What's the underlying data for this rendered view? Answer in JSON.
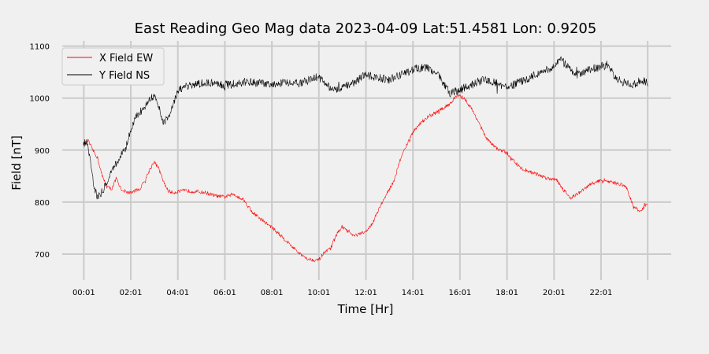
{
  "chart_data": {
    "type": "line",
    "title": "East Reading Geo Mag data        2023-04-09      Lat:51.4581  Lon: 0.9205",
    "xlabel": "Time  [Hr]",
    "ylabel": "Field  [nT]",
    "x_unit": "hours",
    "xlim": [
      -0.9,
      25.0
    ],
    "ylim": [
      650,
      1110
    ],
    "x_ticks": [
      {
        "value": 0.0167,
        "label": "00:01"
      },
      {
        "value": 2.0167,
        "label": "02:01"
      },
      {
        "value": 4.0167,
        "label": "04:01"
      },
      {
        "value": 6.0167,
        "label": "06:01"
      },
      {
        "value": 8.0167,
        "label": "08:01"
      },
      {
        "value": 10.0167,
        "label": "10:01"
      },
      {
        "value": 12.0167,
        "label": "12:01"
      },
      {
        "value": 14.0167,
        "label": "14:01"
      },
      {
        "value": 16.0167,
        "label": "16:01"
      },
      {
        "value": 18.0167,
        "label": "18:01"
      },
      {
        "value": 20.0167,
        "label": "20:01"
      },
      {
        "value": 22.0167,
        "label": "22:01"
      }
    ],
    "x_grid_extra": [
      24.0
    ],
    "y_ticks": [
      700,
      800,
      900,
      1000,
      1100
    ],
    "grid": true,
    "legend_position": "top-left",
    "series": [
      {
        "name": "X Field EW",
        "color": "#ff0000",
        "x": [
          0.0,
          0.2,
          0.4,
          0.6,
          0.8,
          1.0,
          1.2,
          1.4,
          1.6,
          1.8,
          2.0,
          2.2,
          2.4,
          2.6,
          2.8,
          3.0,
          3.2,
          3.4,
          3.6,
          3.8,
          4.0,
          4.4,
          4.8,
          5.2,
          5.6,
          6.0,
          6.4,
          6.8,
          7.2,
          7.6,
          8.0,
          8.4,
          8.8,
          9.2,
          9.6,
          10.0,
          10.2,
          10.5,
          10.8,
          11.0,
          11.5,
          12.0,
          12.3,
          12.6,
          12.9,
          13.2,
          13.5,
          13.8,
          14.1,
          14.4,
          14.7,
          15.0,
          15.3,
          15.6,
          15.9,
          16.2,
          16.5,
          16.8,
          17.1,
          17.4,
          17.7,
          18.0,
          18.3,
          18.6,
          18.9,
          19.2,
          19.5,
          19.8,
          20.1,
          20.4,
          20.7,
          21.0,
          21.3,
          21.6,
          21.9,
          22.2,
          22.5,
          22.8,
          23.1,
          23.4,
          23.7,
          24.0
        ],
        "values": [
          912,
          918,
          900,
          885,
          850,
          830,
          825,
          845,
          825,
          820,
          818,
          822,
          825,
          840,
          860,
          878,
          865,
          840,
          822,
          818,
          820,
          822,
          820,
          818,
          812,
          810,
          815,
          805,
          780,
          765,
          752,
          735,
          718,
          700,
          690,
          688,
          700,
          710,
          740,
          752,
          735,
          742,
          760,
          790,
          815,
          840,
          885,
          915,
          940,
          955,
          965,
          972,
          980,
          990,
          1005,
          1000,
          980,
          955,
          925,
          910,
          900,
          895,
          880,
          865,
          860,
          855,
          850,
          845,
          845,
          825,
          808,
          815,
          825,
          835,
          840,
          842,
          838,
          835,
          828,
          790,
          782,
          798
        ]
      },
      {
        "name": "Y Field NS",
        "color": "#000000",
        "x": [
          0.0,
          0.15,
          0.3,
          0.45,
          0.6,
          0.8,
          1.0,
          1.2,
          1.4,
          1.6,
          1.8,
          2.0,
          2.2,
          2.4,
          2.6,
          2.8,
          3.0,
          3.2,
          3.4,
          3.6,
          3.8,
          4.0,
          4.3,
          4.6,
          5.0,
          5.5,
          6.0,
          6.5,
          7.0,
          7.5,
          8.0,
          8.5,
          9.0,
          9.5,
          10.0,
          10.3,
          10.6,
          11.0,
          11.5,
          12.0,
          12.5,
          13.0,
          13.5,
          14.0,
          14.5,
          15.0,
          15.3,
          15.6,
          16.0,
          16.5,
          17.0,
          17.5,
          18.0,
          18.5,
          19.0,
          19.5,
          20.0,
          20.3,
          20.6,
          21.0,
          21.5,
          22.0,
          22.3,
          22.6,
          23.0,
          23.4,
          23.7,
          24.0
        ],
        "values": [
          910,
          920,
          880,
          830,
          810,
          820,
          840,
          860,
          875,
          890,
          905,
          935,
          960,
          972,
          985,
          1000,
          1005,
          985,
          955,
          962,
          985,
          1015,
          1020,
          1025,
          1028,
          1030,
          1025,
          1028,
          1032,
          1028,
          1025,
          1030,
          1028,
          1032,
          1040,
          1028,
          1015,
          1020,
          1030,
          1045,
          1040,
          1035,
          1045,
          1055,
          1060,
          1050,
          1030,
          1010,
          1015,
          1025,
          1035,
          1030,
          1020,
          1030,
          1040,
          1050,
          1060,
          1075,
          1060,
          1045,
          1055,
          1060,
          1065,
          1040,
          1030,
          1025,
          1035,
          1030
        ]
      }
    ]
  }
}
